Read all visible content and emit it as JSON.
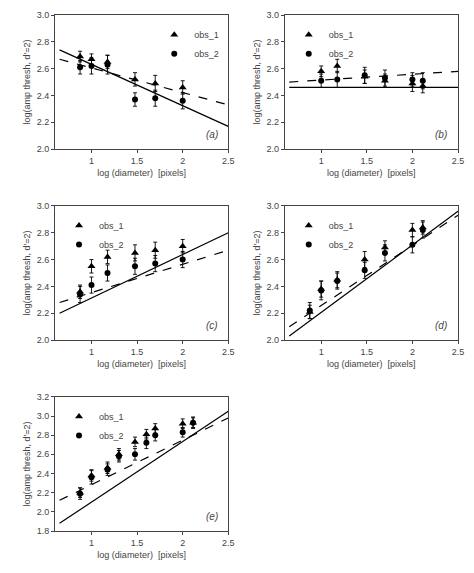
{
  "chart_data": [
    {
      "type": "scatter",
      "annotation": "(a)",
      "x_label": "log (diameter)  [pixels]",
      "y_label": "log(amp thresh, d'=2)",
      "xlim": [
        0.6,
        2.5
      ],
      "ylim": [
        2.0,
        3.0
      ],
      "xticks": [
        1.0,
        1.5,
        2.0,
        2.5
      ],
      "yticks": [
        {
          "value": 2.0,
          "label": "2.0"
        },
        2.2,
        2.4,
        2.6,
        2.8,
        {
          "value": 3.0,
          "label": "3.0"
        }
      ],
      "legend": "upper right",
      "grid": false,
      "series": [
        {
          "type": "line",
          "line_style": "solid",
          "color": "black",
          "x": [
            0.65,
            2.5
          ],
          "values": [
            2.74,
            2.17
          ]
        },
        {
          "type": "line",
          "line_style": "dashed",
          "color": "black",
          "x": [
            0.65,
            2.5
          ],
          "values": [
            2.67,
            2.33
          ]
        },
        {
          "type": "scatter",
          "name": "obs_1",
          "marker": "triangle-up",
          "color": "black",
          "x": [
            0.875,
            1.0,
            1.176,
            1.477,
            1.699,
            2.0
          ],
          "values": [
            2.69,
            2.67,
            2.65,
            2.52,
            2.49,
            2.46
          ],
          "yerr": [
            0.04,
            0.04,
            0.05,
            0.05,
            0.06,
            0.05
          ]
        },
        {
          "type": "scatter",
          "name": "obs_2",
          "marker": "circle",
          "color": "black",
          "x": [
            0.875,
            1.0,
            1.176,
            1.477,
            1.699,
            2.0
          ],
          "values": [
            2.61,
            2.62,
            2.63,
            2.37,
            2.38,
            2.36
          ],
          "yerr": [
            0.05,
            0.06,
            0.07,
            0.05,
            0.06,
            0.06
          ]
        }
      ]
    },
    {
      "type": "scatter",
      "annotation": "(b)",
      "x_label": "log (diameter)  [pixels]",
      "y_label": "log(amp thresh, d'=2)",
      "xlim": [
        0.6,
        2.5
      ],
      "ylim": [
        2.0,
        3.0
      ],
      "xticks": [
        1.0,
        1.5,
        2.0,
        2.5
      ],
      "yticks": [
        {
          "value": 2.0,
          "label": "2.0"
        },
        2.2,
        2.4,
        2.6,
        2.8,
        {
          "value": 3.0,
          "label": "3.0"
        }
      ],
      "legend": "upper left",
      "grid": false,
      "series": [
        {
          "type": "line",
          "line_style": "solid",
          "color": "black",
          "x": [
            0.65,
            2.5
          ],
          "values": [
            2.46,
            2.46
          ]
        },
        {
          "type": "line",
          "line_style": "dashed",
          "color": "black",
          "x": [
            0.65,
            2.5
          ],
          "values": [
            2.5,
            2.58
          ]
        },
        {
          "type": "scatter",
          "name": "obs_1",
          "marker": "triangle-up",
          "color": "black",
          "x": [
            1.0,
            1.176,
            1.477,
            1.699,
            2.0,
            2.114
          ],
          "values": [
            2.58,
            2.62,
            2.54,
            2.51,
            2.49,
            2.47
          ],
          "yerr": [
            0.04,
            0.05,
            0.05,
            0.05,
            0.06,
            0.05
          ]
        },
        {
          "type": "scatter",
          "name": "obs_2",
          "marker": "circle",
          "color": "black",
          "x": [
            1.0,
            1.176,
            1.477,
            1.699,
            2.0,
            2.114
          ],
          "values": [
            2.51,
            2.52,
            2.55,
            2.53,
            2.52,
            2.51
          ],
          "yerr": [
            0.05,
            0.06,
            0.06,
            0.06,
            0.05,
            0.06
          ]
        }
      ]
    },
    {
      "type": "scatter",
      "annotation": "(c)",
      "x_label": "log (diameter)  [pixels]",
      "y_label": "log(amp thresh, d'=2)",
      "xlim": [
        0.6,
        2.5
      ],
      "ylim": [
        2.0,
        3.0
      ],
      "xticks": [
        1.0,
        1.5,
        2.0,
        2.5
      ],
      "yticks": [
        {
          "value": 2.0,
          "label": "2.0"
        },
        2.2,
        2.4,
        2.6,
        2.8,
        {
          "value": 3.0,
          "label": "3.0"
        }
      ],
      "legend": "upper left",
      "grid": false,
      "series": [
        {
          "type": "line",
          "line_style": "solid",
          "color": "black",
          "x": [
            0.65,
            2.5
          ],
          "values": [
            2.2,
            2.8
          ]
        },
        {
          "type": "line",
          "line_style": "dashed",
          "color": "black",
          "x": [
            0.65,
            2.5
          ],
          "values": [
            2.28,
            2.67
          ]
        },
        {
          "type": "scatter",
          "name": "obs_1",
          "marker": "triangle-up",
          "color": "black",
          "x": [
            0.875,
            1.0,
            1.176,
            1.477,
            1.699,
            2.0
          ],
          "values": [
            2.36,
            2.55,
            2.62,
            2.65,
            2.67,
            2.7
          ],
          "yerr": [
            0.05,
            0.05,
            0.05,
            0.06,
            0.06,
            0.05
          ]
        },
        {
          "type": "scatter",
          "name": "obs_2",
          "marker": "circle",
          "color": "black",
          "x": [
            0.875,
            1.0,
            1.176,
            1.477,
            1.699,
            2.0
          ],
          "values": [
            2.34,
            2.41,
            2.5,
            2.55,
            2.57,
            2.6
          ],
          "yerr": [
            0.06,
            0.06,
            0.06,
            0.06,
            0.06,
            0.06
          ]
        }
      ]
    },
    {
      "type": "scatter",
      "annotation": "(d)",
      "x_label": "log (diameter)  [pixels]",
      "y_label": "log(amp thresh, d'=2)",
      "xlim": [
        0.6,
        2.5
      ],
      "ylim": [
        2.0,
        3.0
      ],
      "xticks": [
        1.0,
        1.5,
        2.0,
        2.5
      ],
      "yticks": [
        {
          "value": 2.0,
          "label": "2.0"
        },
        2.2,
        2.4,
        2.6,
        2.8,
        {
          "value": 3.0,
          "label": "3.0"
        }
      ],
      "legend": "upper left",
      "grid": false,
      "series": [
        {
          "type": "line",
          "line_style": "solid",
          "color": "black",
          "x": [
            0.65,
            2.5
          ],
          "values": [
            2.03,
            2.96
          ]
        },
        {
          "type": "line",
          "line_style": "dashed",
          "color": "black",
          "x": [
            0.65,
            2.5
          ],
          "values": [
            2.1,
            2.93
          ]
        },
        {
          "type": "scatter",
          "name": "obs_1",
          "marker": "triangle-up",
          "color": "black",
          "x": [
            0.875,
            1.0,
            1.176,
            1.477,
            1.699,
            2.0,
            2.114
          ],
          "values": [
            2.21,
            2.38,
            2.45,
            2.6,
            2.69,
            2.82,
            2.84
          ],
          "yerr": [
            0.05,
            0.06,
            0.06,
            0.06,
            0.05,
            0.05,
            0.05
          ]
        },
        {
          "type": "scatter",
          "name": "obs_2",
          "marker": "circle",
          "color": "black",
          "x": [
            0.875,
            1.0,
            1.176,
            1.477,
            1.699,
            2.0,
            2.114
          ],
          "values": [
            2.22,
            2.37,
            2.44,
            2.52,
            2.65,
            2.71,
            2.82
          ],
          "yerr": [
            0.06,
            0.07,
            0.06,
            0.06,
            0.06,
            0.06,
            0.06
          ]
        }
      ]
    },
    {
      "type": "scatter",
      "annotation": "(e)",
      "x_label": "log (diameter)  [pixels]",
      "y_label": "log(amp thresh, d'=2)",
      "xlim": [
        0.6,
        2.5
      ],
      "ylim": [
        1.8,
        3.2
      ],
      "xticks": [
        1.0,
        1.5,
        2.0,
        2.5
      ],
      "yticks": [
        1.8,
        {
          "value": 2.0,
          "label": "2.0"
        },
        2.2,
        2.4,
        2.6,
        2.8,
        {
          "value": 3.0,
          "label": "3.0"
        },
        3.2
      ],
      "legend": "upper left",
      "grid": false,
      "series": [
        {
          "type": "line",
          "line_style": "solid",
          "color": "black",
          "x": [
            0.65,
            2.5
          ],
          "values": [
            1.88,
            3.05
          ]
        },
        {
          "type": "line",
          "line_style": "dashed",
          "color": "black",
          "x": [
            0.65,
            2.5
          ],
          "values": [
            2.12,
            2.98
          ]
        },
        {
          "type": "scatter",
          "name": "obs_1",
          "marker": "triangle-up",
          "color": "black",
          "x": [
            0.875,
            1.0,
            1.176,
            1.301,
            1.477,
            1.602,
            1.699,
            2.0,
            2.114
          ],
          "values": [
            2.2,
            2.38,
            2.46,
            2.6,
            2.73,
            2.81,
            2.87,
            2.92,
            2.93
          ],
          "yerr": [
            0.05,
            0.06,
            0.06,
            0.06,
            0.05,
            0.05,
            0.05,
            0.05,
            0.05
          ]
        },
        {
          "type": "scatter",
          "name": "obs_2",
          "marker": "circle",
          "color": "black",
          "x": [
            0.875,
            1.0,
            1.176,
            1.301,
            1.477,
            1.602,
            1.699,
            2.0,
            2.114
          ],
          "values": [
            2.19,
            2.36,
            2.44,
            2.58,
            2.6,
            2.72,
            2.8,
            2.83,
            2.93
          ],
          "yerr": [
            0.06,
            0.07,
            0.06,
            0.06,
            0.06,
            0.06,
            0.06,
            0.05,
            0.06
          ]
        }
      ]
    }
  ]
}
